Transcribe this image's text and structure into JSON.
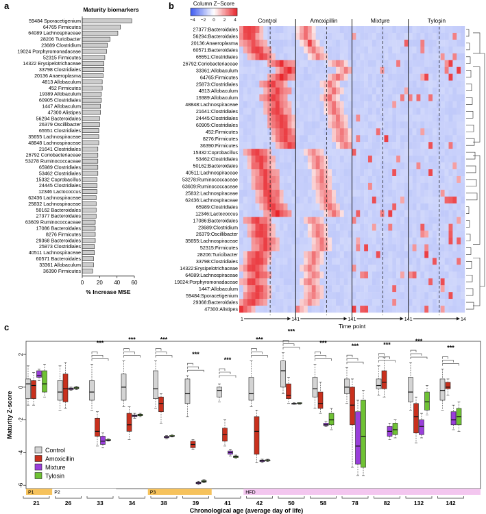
{
  "panel_letters": {
    "a": "a",
    "b": "b",
    "c": "c"
  },
  "chart_data": [
    {
      "panel": "a",
      "type": "bar",
      "orientation": "horizontal",
      "title": "Maturity biomarkers",
      "xlabel": "% Increase MSE",
      "ylabel": "",
      "xlim": [
        0,
        60
      ],
      "xticks": [
        0,
        20,
        40,
        60
      ],
      "categories": [
        "59484 Sporacetigenium",
        "64765 Firmicutes",
        "64089 Lachnospiraceae",
        "28206 Turicibacter",
        "23689 Clostridium",
        "19024 Porphyromonadaceae",
        "52315 Firmicutes",
        "14322 Erysipelotrichaceae",
        "33798 Clostridiales",
        "20136 Anaeroplasma",
        "4813 Allobaculum",
        "452 Firmicutes",
        "19389 Allobaculum",
        "60905 Clostridiales",
        "1447 Allobaculum",
        "47300 Alistipes",
        "56294 Bacteroidales",
        "26379 Oscillibacter",
        "65551 Clostridiales",
        "35655 Lachnospiraceae",
        "48848 Lachnospiraceae",
        "21641 Clostridiales",
        "26792 Coriobacteriaceae",
        "53278 Ruminococcaceae",
        "65989 Clostridiales",
        "53462 Clostridiales",
        "15332 Coprobacillus",
        "24445 Clostridiales",
        "12346 Lactococcus",
        "62436 Lachnospiraceae",
        "25832 Lachnospiraceae",
        "50162 Bacteroidales",
        "27377 Bacteroidales",
        "63609 Ruminococcaceae",
        "17086 Bacteroidales",
        "8276 Firmicutes",
        "29368 Bacteroidales",
        "25873 Clostridiales",
        "40511 Lachnospiraceae",
        "60571 Bacteroidales",
        "33361 Allobaculum",
        "36390 Firmicutes"
      ],
      "values": [
        57,
        44,
        41,
        32,
        29,
        28,
        26,
        25,
        25,
        24,
        23,
        23,
        22,
        22,
        21,
        21,
        20,
        20,
        19,
        19,
        19,
        18,
        18,
        18,
        18,
        18,
        17,
        17,
        17,
        16,
        16,
        16,
        16,
        15,
        15,
        15,
        15,
        14,
        14,
        13,
        13,
        12
      ]
    },
    {
      "panel": "b",
      "type": "heatmap",
      "legend_title": "Column Z−Score",
      "legend_ticks": [
        "−4",
        "−2",
        "0",
        "2",
        "4"
      ],
      "legend_range": [
        -4,
        4
      ],
      "colors": {
        "low": "#3d5af0",
        "mid": "#ffffff",
        "high": "#e8242a"
      },
      "groups": [
        "Control",
        "Amoxicillin",
        "Mixture",
        "Tylosin"
      ],
      "group_axis_start": [
        "1",
        "1",
        "1",
        "1"
      ],
      "group_axis_end": [
        "14",
        "14",
        "14",
        "14"
      ],
      "xlabel": "Time point",
      "rows": [
        "27377:Bacteroidales",
        "56294:Bacteroidales",
        "20136:Anaeroplasma",
        "60571:Bacteroidales",
        "65551:Clostridiales",
        "26792:Coriobacteriaceae",
        "33361:Allobaculum",
        "64765:Firmicutes",
        "25873:Clostridiales",
        "4813:Allobaculum",
        "19389:Allobaculum",
        "48848:Lachnospiraceae",
        "21641:Clostridiales",
        "24445:Clostridiales",
        "60905:Clostridiales",
        "452:Firmicutes",
        "8276:Firmicutes",
        "36390:Firmicutes",
        "15332:Coprobacillus",
        "53462:Clostridiales",
        "50162:Bacteroidales",
        "40511:Lachnospiraceae",
        "53278:Ruminococcaceae",
        "63609:Ruminococcaceae",
        "25832:Lachnospiraceae",
        "62436:Lachnospiraceae",
        "65989:Clostridiales",
        "12346:Lactococcus",
        "17086:Bacteroidales",
        "23689:Clostridium",
        "26379:Oscillibacter",
        "35655:Lachnospiraceae",
        "52315:Firmicutes",
        "28206:Turicibacter",
        "33798:Clostridiales",
        "14322:Erysipelotrichaceae",
        "64089:Lachnospiraceae",
        "19024:Porphyromonadaceae",
        "1447:Allobaculum",
        "59484:Sporacetigenium",
        "29368:Bacteroidales",
        "47300:Alistipes"
      ]
    },
    {
      "panel": "c",
      "type": "box",
      "title": "",
      "ylabel": "Maturity Z-score",
      "xlabel": "Chronological age (average day of life)",
      "ylim": [
        -6.2,
        2.8
      ],
      "yticks": [
        -6,
        -4,
        -2,
        0,
        2
      ],
      "grid": false,
      "legend_position": "bottom-left",
      "days": [
        "21",
        "26",
        "33",
        "34",
        "38",
        "39",
        "41",
        "42",
        "50",
        "58",
        "78",
        "82",
        "132",
        "142"
      ],
      "significance": [
        "",
        "",
        "***",
        "***",
        "***",
        "***",
        "***",
        "***",
        "***",
        "***",
        "***",
        "***",
        "***",
        "***"
      ],
      "phases": [
        {
          "label": "P1",
          "from_index": 0,
          "to_index": 0,
          "color": "#f6c25c"
        },
        {
          "label": "P2",
          "from_index": 1,
          "to_index": 2,
          "color": "#ffffff"
        },
        {
          "label": "P3",
          "from_index": 4,
          "to_index": 5,
          "color": "#f6c25c"
        },
        {
          "label": "HFD",
          "from_index": 7,
          "to_index": 13,
          "color": "#f3c6ef"
        }
      ],
      "series": [
        {
          "name": "Control",
          "color": "#d4d4d4",
          "boxes": [
            [
              -1.1,
              -0.7,
              0.2,
              0.5,
              1.3
            ],
            [
              -1.4,
              -0.8,
              -0.3,
              0.4,
              1.3
            ],
            [
              -1.4,
              -0.8,
              -0.3,
              0.4,
              1.4
            ],
            [
              -1.2,
              -0.8,
              0,
              0.8,
              1.6
            ],
            [
              -1.3,
              -0.7,
              -0.1,
              1.0,
              1.6
            ],
            [
              -1.8,
              -1.0,
              -0.4,
              0.5,
              0.7
            ],
            [
              -0.9,
              -0.6,
              -0.2,
              0,
              0.2
            ],
            [
              -1.2,
              -0.8,
              -0.4,
              0.6,
              1.6
            ],
            [
              -0.4,
              0,
              1,
              1.6,
              2.1
            ],
            [
              -1.3,
              -0.6,
              -0.1,
              0.6,
              1.4
            ],
            [
              -1.0,
              -0.4,
              0,
              0.5,
              1.2
            ],
            [
              -0.5,
              -0.1,
              0.1,
              0.5,
              1.3
            ],
            [
              -1.4,
              -0.9,
              -0.3,
              0.6,
              1.5
            ],
            [
              -1.4,
              -0.8,
              -0.2,
              0.5,
              1.1
            ]
          ]
        },
        {
          "name": "Amoxicillin",
          "color": "#c9301d",
          "boxes": [
            [
              -1.1,
              -0.7,
              0.1,
              0.4,
              0.9
            ],
            [
              -1.3,
              -0.9,
              -0.1,
              0.8,
              1.5
            ],
            [
              -3.6,
              -3.0,
              -2.7,
              -1.9,
              -1.5
            ],
            [
              -3.2,
              -2.7,
              -2.3,
              -1.6,
              -1.2
            ],
            [
              -2.2,
              -1.5,
              -1.0,
              -0.6,
              -0.4
            ],
            [
              -3.8,
              -3.7,
              -3.5,
              -3.3,
              -3.2
            ],
            [
              -3.6,
              -3.3,
              -2.9,
              -2.5,
              -2.0
            ],
            [
              -4.6,
              -4.1,
              -2.7,
              -1.8,
              -1.4
            ],
            [
              -1.0,
              -0.7,
              -0.5,
              0.2,
              0.6
            ],
            [
              -1.6,
              -1.3,
              -1.0,
              -0.3,
              0.3
            ],
            [
              -4.9,
              -2.3,
              -1.1,
              0,
              0.5
            ],
            [
              -0.6,
              -0.1,
              0.3,
              1.0,
              1.8
            ],
            [
              -3.4,
              -2.8,
              -1.8,
              -1.0,
              -0.6
            ],
            [
              -0.5,
              -0.1,
              0,
              0.3,
              0.5
            ]
          ]
        },
        {
          "name": "Mixture",
          "color": "#9a3fdb",
          "boxes": [
            [
              0.4,
              0.6,
              0.7,
              1.0,
              1.1
            ],
            [
              -0.2,
              -0.15,
              -0.1,
              -0.05,
              0
            ],
            [
              -3.7,
              -3.5,
              -3.3,
              -3.0,
              -2.8
            ],
            [
              -1.9,
              -1.8,
              -1.75,
              -1.7,
              -1.6
            ],
            [
              -3.15,
              -3.1,
              -3.05,
              -3.0,
              -2.95
            ],
            [
              -5.95,
              -5.9,
              -5.85,
              -5.8,
              -5.75
            ],
            [
              -4.2,
              -4.1,
              -4.0,
              -3.9,
              -3.8
            ],
            [
              -4.6,
              -4.55,
              -4.5,
              -4.45,
              -4.4
            ],
            [
              -1.05,
              -1.0,
              -1.0,
              -1.0,
              -0.95
            ],
            [
              -2.4,
              -2.35,
              -2.3,
              -2.2,
              -2.1
            ],
            [
              -5.4,
              -4.7,
              -3.6,
              -1.5,
              -0.8
            ],
            [
              -3.2,
              -3.0,
              -2.7,
              -2.4,
              -2.2
            ],
            [
              -3.1,
              -2.9,
              -2.4,
              -2.0,
              -1.6
            ],
            [
              -2.6,
              -2.3,
              -2.0,
              -1.5,
              -1.1
            ]
          ]
        },
        {
          "name": "Tylosin",
          "color": "#6fc234",
          "boxes": [
            [
              -0.6,
              -0.3,
              0.2,
              1.0,
              1.4
            ],
            [
              -0.15,
              -0.1,
              -0.05,
              0,
              0.05
            ],
            [
              -3.3,
              -3.25,
              -3.25,
              -3.2,
              -3.15
            ],
            [
              -1.8,
              -1.75,
              -1.7,
              -1.65,
              -1.6
            ],
            [
              -3.05,
              -3.0,
              -3.0,
              -2.95,
              -2.9
            ],
            [
              -5.85,
              -5.8,
              -5.75,
              -5.7,
              -5.65
            ],
            [
              -4.35,
              -4.3,
              -4.25,
              -4.2,
              -4.15
            ],
            [
              -4.55,
              -4.5,
              -4.45,
              -4.45,
              -4.4
            ],
            [
              -1.05,
              -1.0,
              -1.0,
              -0.95,
              -0.95
            ],
            [
              -2.6,
              -2.3,
              -2.0,
              -1.6,
              -1.3
            ],
            [
              -5.4,
              -4.9,
              -3.0,
              -0.8,
              -0.2
            ],
            [
              -3.1,
              -2.9,
              -2.6,
              -2.2,
              -2.0
            ],
            [
              -1.7,
              -1.4,
              -0.9,
              -0.3,
              0.1
            ],
            [
              -2.7,
              -2.3,
              -1.8,
              -1.3,
              -0.9
            ]
          ]
        }
      ]
    }
  ]
}
